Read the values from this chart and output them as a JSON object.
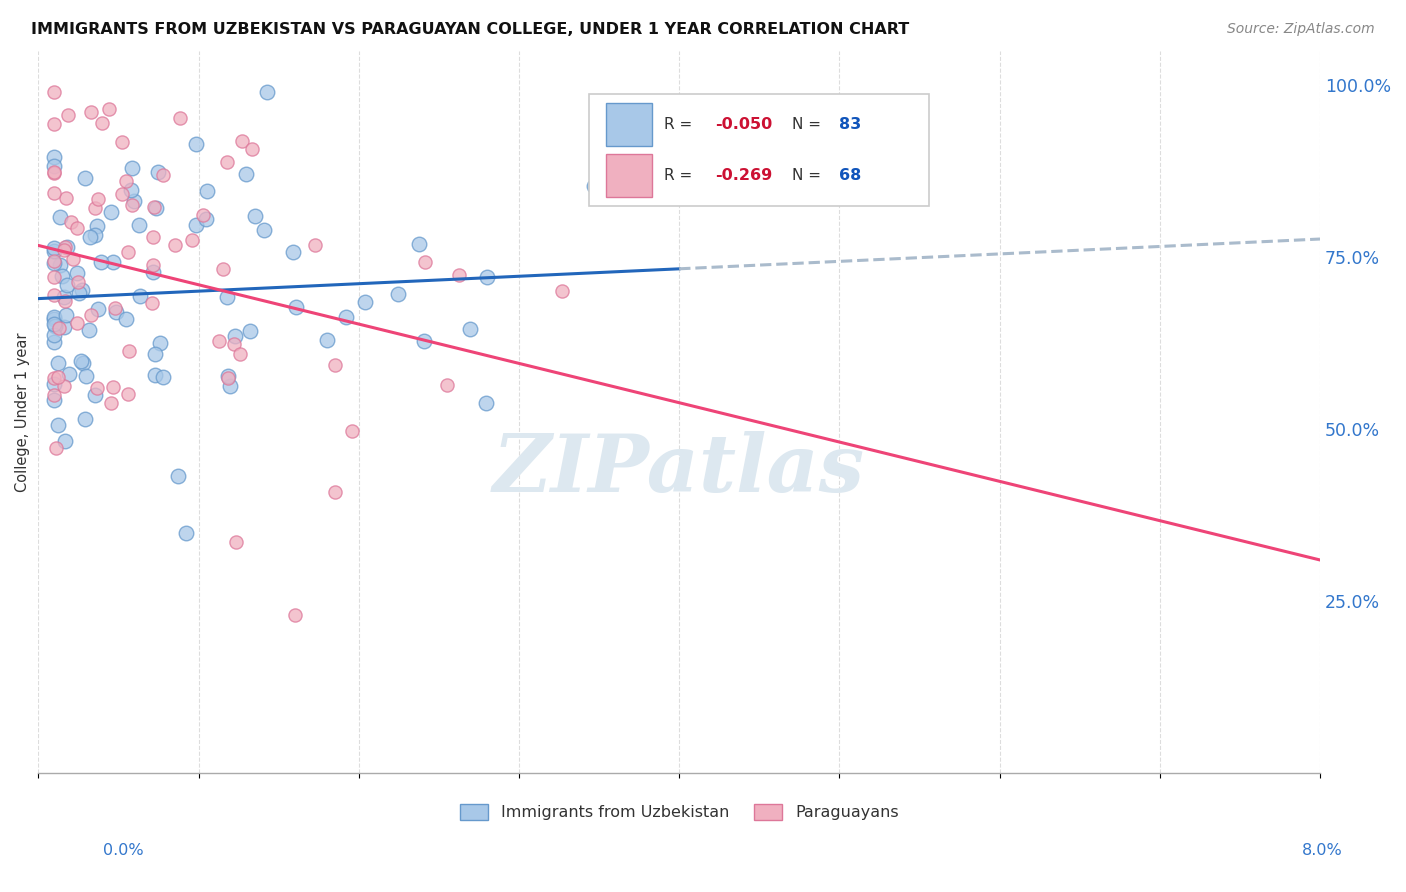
{
  "title": "IMMIGRANTS FROM UZBEKISTAN VS PARAGUAYAN COLLEGE, UNDER 1 YEAR CORRELATION CHART",
  "source": "Source: ZipAtlas.com",
  "ylabel": "College, Under 1 year",
  "xmin": 0.0,
  "xmax": 0.08,
  "ymin": 0.0,
  "ymax": 1.05,
  "right_yticks": [
    0.25,
    0.5,
    0.75,
    1.0
  ],
  "right_yticklabels": [
    "25.0%",
    "50.0%",
    "75.0%",
    "100.0%"
  ],
  "legend_blue_label": "Immigrants from Uzbekistan",
  "legend_pink_label": "Paraguayans",
  "R_blue": -0.05,
  "N_blue": 83,
  "R_pink": -0.269,
  "N_pink": 68,
  "blue_color": "#a8c8e8",
  "pink_color": "#f0b0c0",
  "blue_edge_color": "#6699cc",
  "pink_edge_color": "#dd7799",
  "blue_line_color": "#2266bb",
  "pink_line_color": "#ee4477",
  "blue_dash_color": "#aabbcc",
  "watermark_color": "#dde8f0",
  "grid_color": "#dddddd",
  "grid_style": "--"
}
